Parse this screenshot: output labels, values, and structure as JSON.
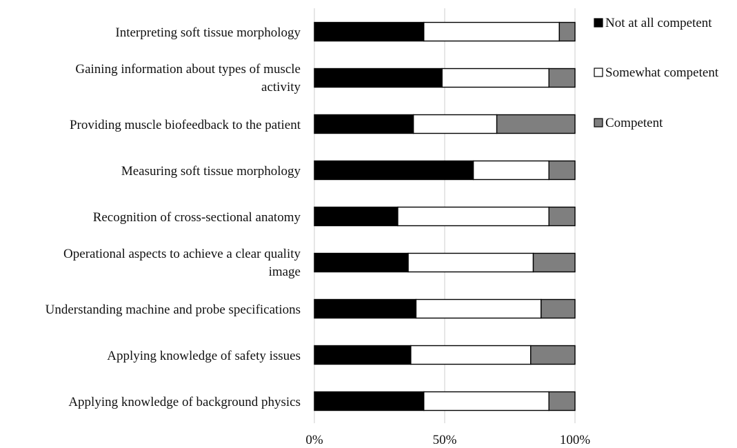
{
  "chart_data": {
    "type": "bar",
    "orientation": "horizontal",
    "stacked": "percent",
    "title": "",
    "xlabel": "",
    "ylabel": "",
    "xlim": [
      0,
      100
    ],
    "x_ticks": [
      "0%",
      "50%",
      "100%"
    ],
    "grid": "vertical",
    "legend_position": "right",
    "categories": [
      [
        "Interpreting soft tissue morphology"
      ],
      [
        "Gaining information about types of muscle",
        "activity"
      ],
      [
        "Providing muscle biofeedback to the patient"
      ],
      [
        "Measuring soft tissue morphology"
      ],
      [
        "Recognition of cross-sectional anatomy"
      ],
      [
        "Operational aspects to achieve a clear quality",
        "image"
      ],
      [
        "Understanding machine and probe specifications"
      ],
      [
        "Applying knowledge of safety issues"
      ],
      [
        "Applying knowledge of background physics"
      ]
    ],
    "series": [
      {
        "name": "Not at all competent",
        "color": "#000000",
        "values": [
          42,
          49,
          38,
          61,
          32,
          36,
          39,
          37,
          42
        ]
      },
      {
        "name": "Somewhat competent",
        "color": "#ffffff",
        "values": [
          52,
          41,
          32,
          29,
          58,
          48,
          48,
          46,
          48
        ]
      },
      {
        "name": "Competent",
        "color": "#7f7f7f",
        "values": [
          6,
          10,
          30,
          10,
          10,
          16,
          13,
          17,
          10
        ]
      }
    ]
  }
}
